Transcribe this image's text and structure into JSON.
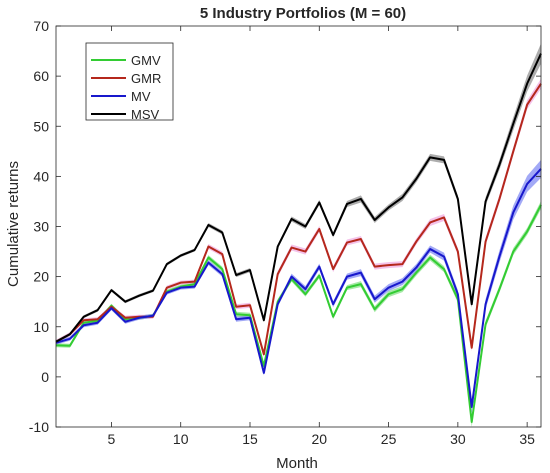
{
  "chart_data": {
    "type": "line",
    "title": "5 Industry Portfolios (M = 60)",
    "xlabel": "Month",
    "ylabel": "Cumulative returns",
    "xlim": [
      1,
      36
    ],
    "ylim": [
      -10,
      70
    ],
    "xticks": [
      5,
      10,
      15,
      20,
      25,
      30,
      35
    ],
    "yticks": [
      -10,
      0,
      10,
      20,
      30,
      40,
      50,
      60,
      70
    ],
    "xtick_labels": [
      "5",
      "10",
      "15",
      "20",
      "25",
      "30",
      "35"
    ],
    "ytick_labels": [
      "-10",
      "0",
      "10",
      "20",
      "30",
      "40",
      "50",
      "60",
      "70"
    ],
    "grid": false,
    "legend_position": "top-left",
    "x": [
      1,
      2,
      3,
      4,
      5,
      6,
      7,
      8,
      9,
      10,
      11,
      12,
      13,
      14,
      15,
      16,
      17,
      18,
      19,
      20,
      21,
      22,
      23,
      24,
      25,
      26,
      27,
      28,
      29,
      30,
      31,
      32,
      33,
      34,
      35,
      36
    ],
    "series": [
      {
        "name": "GMV",
        "color": "#33cc33",
        "band_color": "#7fe07f",
        "values": [
          6.3,
          6.2,
          10.8,
          11.2,
          14.2,
          11.5,
          11.8,
          12.2,
          17.0,
          18.0,
          18.5,
          23.8,
          21.5,
          12.5,
          12.3,
          2.2,
          15.0,
          19.5,
          16.5,
          20.2,
          12.0,
          17.8,
          18.5,
          13.5,
          16.5,
          17.5,
          20.8,
          23.8,
          21.5,
          15.5,
          -9.0,
          10.5,
          17.5,
          25.0,
          29.0,
          34.3
        ],
        "band": [
          0.4,
          0.4,
          0.4,
          0.4,
          0.4,
          0.4,
          0.4,
          0.4,
          0.4,
          0.4,
          0.4,
          0.5,
          0.5,
          0.5,
          0.5,
          0.5,
          0.5,
          0.5,
          0.5,
          0.5,
          0.5,
          0.5,
          0.6,
          0.6,
          0.6,
          0.6,
          0.6,
          0.6,
          0.6,
          0.7,
          1.0,
          0.7,
          0.7,
          0.7,
          0.7,
          0.8
        ]
      },
      {
        "name": "GMR",
        "color": "#b5281c",
        "band_color": "#f0a8e0",
        "values": [
          7.0,
          8.5,
          11.3,
          11.5,
          14.0,
          11.8,
          12.0,
          12.0,
          17.8,
          18.8,
          19.0,
          26.0,
          24.5,
          14.0,
          14.3,
          4.5,
          20.5,
          25.8,
          25.0,
          29.5,
          21.5,
          26.8,
          27.5,
          22.0,
          22.3,
          22.5,
          27.0,
          30.8,
          31.8,
          25.0,
          5.8,
          27.0,
          35.5,
          45.0,
          54.3,
          58.5
        ],
        "band": [
          0.4,
          0.4,
          0.4,
          0.4,
          0.4,
          0.4,
          0.4,
          0.4,
          0.4,
          0.4,
          0.4,
          0.5,
          0.5,
          0.5,
          0.5,
          0.5,
          0.6,
          0.6,
          0.6,
          0.6,
          0.6,
          0.6,
          0.6,
          0.6,
          0.6,
          0.6,
          0.6,
          0.7,
          0.7,
          0.7,
          0.7,
          0.8,
          0.8,
          0.8,
          0.9,
          1.0
        ]
      },
      {
        "name": "MV",
        "color": "#1818cc",
        "band_color": "#7b84f2",
        "values": [
          6.8,
          7.6,
          10.3,
          10.8,
          13.7,
          11.0,
          11.8,
          12.2,
          16.8,
          17.8,
          18.0,
          22.8,
          20.5,
          11.5,
          11.8,
          0.8,
          14.5,
          20.0,
          17.5,
          22.0,
          14.5,
          20.0,
          20.8,
          15.5,
          17.8,
          19.0,
          21.8,
          25.5,
          24.0,
          16.5,
          -6.0,
          14.5,
          24.0,
          32.8,
          38.5,
          41.5
        ],
        "band": [
          0.4,
          0.4,
          0.4,
          0.4,
          0.4,
          0.4,
          0.4,
          0.4,
          0.4,
          0.4,
          0.4,
          0.5,
          0.5,
          0.5,
          0.5,
          0.5,
          0.5,
          0.6,
          0.6,
          0.6,
          0.6,
          0.6,
          0.7,
          0.7,
          0.7,
          0.7,
          0.7,
          0.7,
          0.8,
          0.8,
          1.2,
          1.0,
          1.2,
          1.4,
          1.6,
          1.8
        ]
      },
      {
        "name": "MSV",
        "color": "#000000",
        "band_color": "#8a8a8a",
        "values": [
          7.0,
          8.5,
          12.0,
          13.3,
          17.3,
          15.0,
          16.2,
          17.2,
          22.5,
          24.2,
          25.3,
          30.3,
          28.8,
          20.3,
          21.3,
          11.3,
          26.0,
          31.5,
          30.0,
          34.8,
          28.3,
          34.5,
          35.5,
          31.3,
          33.8,
          35.8,
          39.5,
          43.8,
          43.3,
          35.5,
          14.5,
          35.0,
          42.3,
          50.5,
          58.5,
          64.5
        ],
        "band": [
          0.3,
          0.3,
          0.3,
          0.3,
          0.3,
          0.3,
          0.3,
          0.3,
          0.3,
          0.3,
          0.3,
          0.4,
          0.4,
          0.4,
          0.4,
          0.4,
          0.4,
          0.5,
          0.5,
          0.5,
          0.5,
          0.6,
          0.7,
          0.6,
          0.6,
          0.7,
          0.7,
          0.7,
          0.7,
          0.7,
          0.7,
          0.8,
          1.0,
          1.3,
          1.6,
          2.0
        ]
      }
    ]
  }
}
